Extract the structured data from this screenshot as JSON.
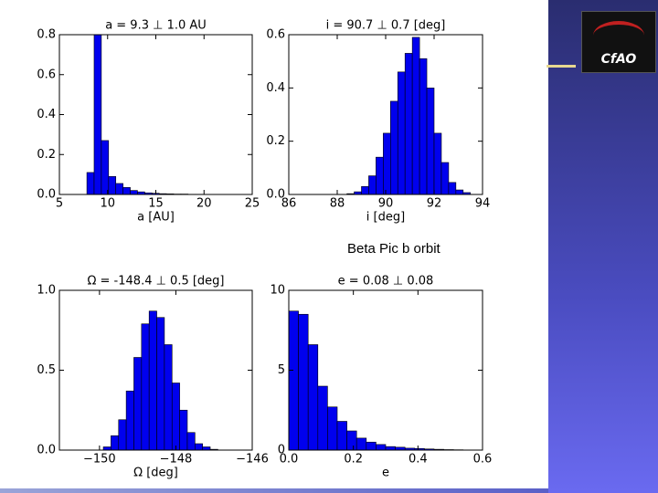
{
  "caption": "Beta Pic b orbit",
  "logo": "CfAO",
  "chart_data": [
    {
      "type": "histogram",
      "title": "a = 9.3 ⊥ 1.0 AU",
      "x_label": "a [AU]",
      "color": "#0000ee",
      "bins": [
        7.85,
        8.6,
        9.35,
        10.1,
        10.85,
        11.6,
        12.35,
        13.1,
        13.85,
        14.6,
        15.35,
        16.1,
        16.85,
        17.6,
        18.35,
        19.1,
        19.85
      ],
      "values": [
        0.11,
        0.8,
        0.27,
        0.09,
        0.055,
        0.035,
        0.02,
        0.013,
        0.008,
        0.006,
        0.004,
        0.003,
        0.002,
        0.002,
        0.001,
        0.001
      ],
      "xlim": [
        5,
        25
      ],
      "xticks": [
        5,
        10,
        15,
        20,
        25
      ],
      "ylim": [
        0,
        0.8
      ],
      "yticks": [
        {
          "value": 0,
          "label": "0.0"
        },
        0.2,
        0.4,
        0.6,
        0.8
      ]
    },
    {
      "type": "histogram",
      "title": "i = 90.7 ⊥ 0.7 [deg]",
      "x_label": "i [deg]",
      "color": "#0000ee",
      "bins": [
        88.4,
        88.7,
        89.0,
        89.3,
        89.6,
        89.9,
        90.2,
        90.5,
        90.8,
        91.1,
        91.4,
        91.7,
        92.0,
        92.3,
        92.6,
        92.9,
        93.2,
        93.5
      ],
      "values": [
        0.003,
        0.01,
        0.03,
        0.07,
        0.14,
        0.23,
        0.35,
        0.46,
        0.53,
        0.59,
        0.51,
        0.4,
        0.23,
        0.12,
        0.045,
        0.017,
        0.007
      ],
      "xlim": [
        86,
        94
      ],
      "xticks": [
        86,
        88,
        90,
        92,
        94
      ],
      "ylim": [
        0,
        0.6
      ],
      "yticks": [
        {
          "value": 0,
          "label": "0.0"
        },
        0.2,
        0.4,
        0.6
      ]
    },
    {
      "type": "histogram",
      "title": "Ω = -148.4 ⊥ 0.5 [deg]",
      "x_label": "Ω [deg]",
      "color": "#0000ee",
      "bins": [
        -149.9,
        -149.7,
        -149.5,
        -149.3,
        -149.1,
        -148.9,
        -148.7,
        -148.5,
        -148.3,
        -148.1,
        -147.9,
        -147.7,
        -147.5,
        -147.3,
        -147.1,
        -146.9
      ],
      "values": [
        0.02,
        0.09,
        0.19,
        0.37,
        0.58,
        0.79,
        0.87,
        0.83,
        0.66,
        0.42,
        0.25,
        0.11,
        0.04,
        0.02,
        0.005
      ],
      "xlim": [
        -151.05,
        -146
      ],
      "xticks": [
        {
          "value": -150,
          "label": "−150"
        },
        {
          "value": -148,
          "label": "−148"
        },
        {
          "value": -146,
          "label": "−146"
        }
      ],
      "ylim": [
        0,
        1
      ],
      "yticks": [
        {
          "value": 0,
          "label": "0.0"
        },
        0.5,
        {
          "value": 1,
          "label": "1.0"
        }
      ]
    },
    {
      "type": "histogram",
      "title": "e = 0.08 ⊥ 0.08",
      "x_label": "e",
      "color": "#0000ee",
      "bins": [
        0,
        0.03,
        0.06,
        0.09,
        0.12,
        0.15,
        0.18,
        0.21,
        0.24,
        0.27,
        0.3,
        0.33,
        0.36,
        0.39,
        0.42,
        0.45,
        0.48,
        0.51,
        0.54,
        0.57,
        0.6
      ],
      "values": [
        8.7,
        8.5,
        6.6,
        4.0,
        2.7,
        1.8,
        1.2,
        0.75,
        0.5,
        0.35,
        0.22,
        0.18,
        0.12,
        0.1,
        0.07,
        0.05,
        0.03,
        0.02,
        0.01,
        0.01
      ],
      "xlim": [
        0,
        0.6
      ],
      "xticks": [
        {
          "value": 0,
          "label": "0.0"
        },
        0.2,
        0.4,
        0.6
      ],
      "ylim": [
        0,
        10
      ],
      "yticks": [
        0,
        5,
        10
      ]
    }
  ]
}
